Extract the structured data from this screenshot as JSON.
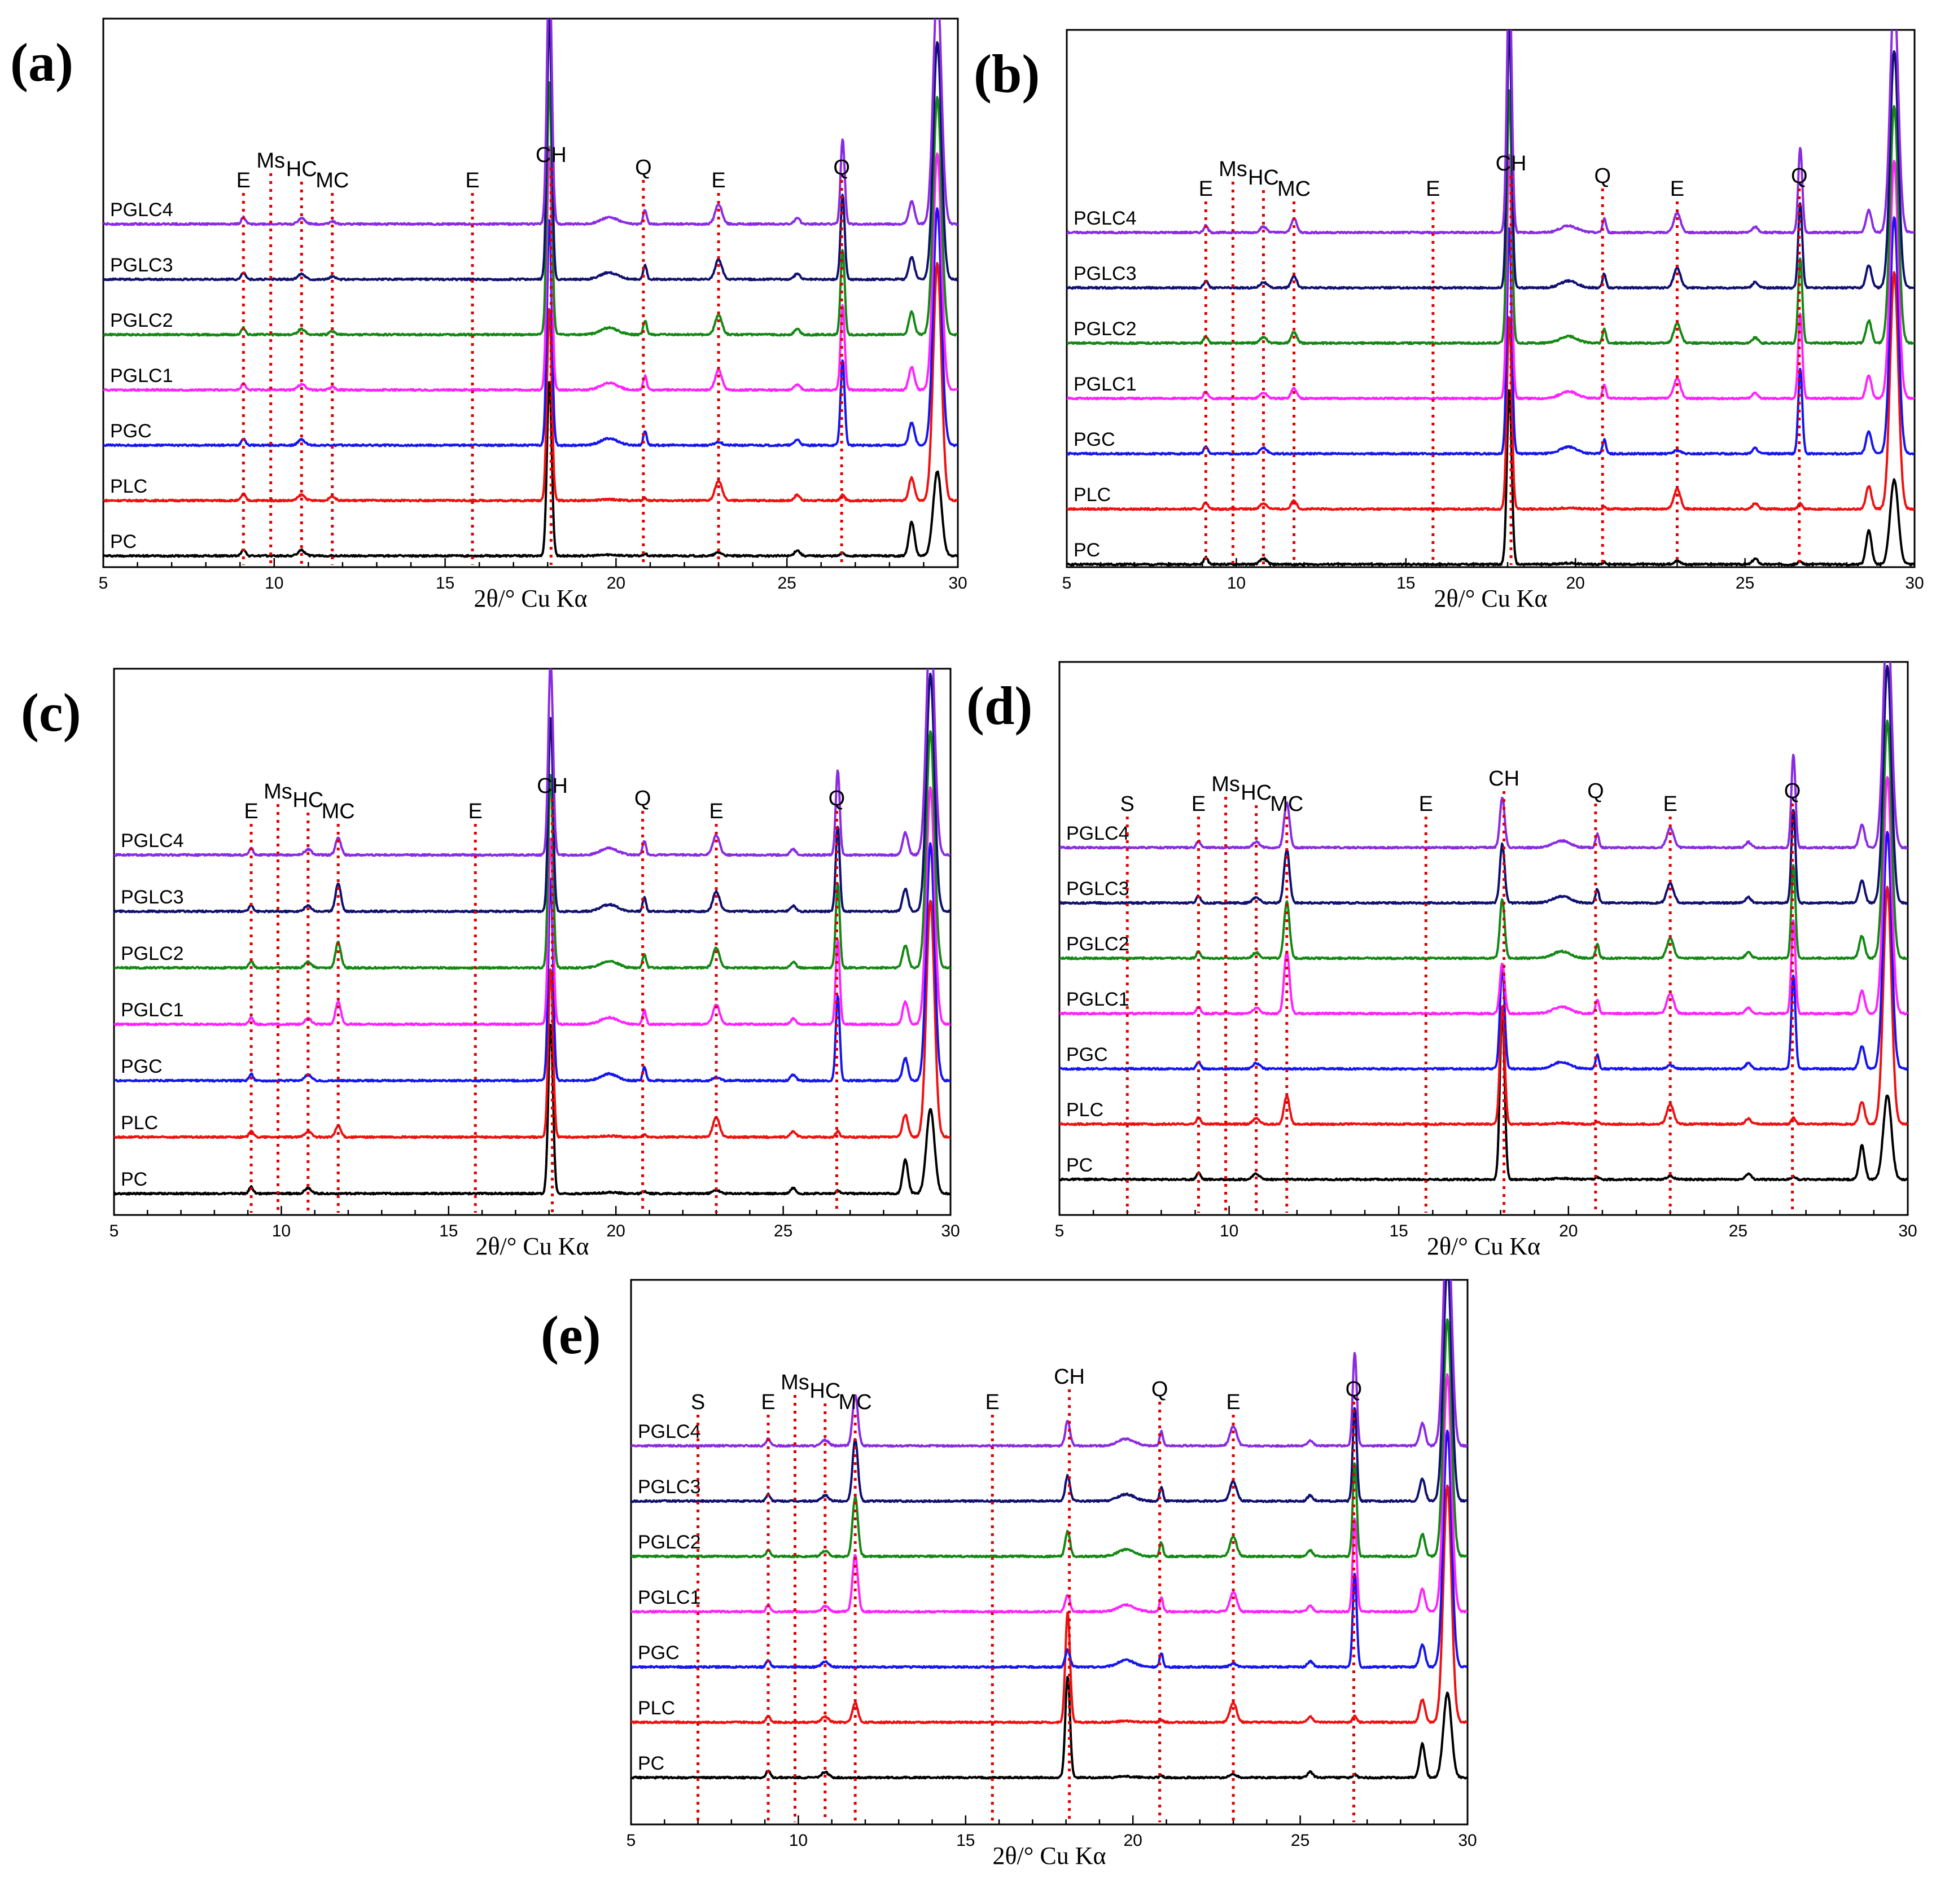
{
  "chart_data": [
    {
      "type": "line",
      "panel_label": "(a)",
      "xlabel": "2θ/° Cu Kα",
      "xlim": [
        5,
        30
      ],
      "xticks": [
        "5",
        "10",
        "15",
        "20",
        "25",
        "30"
      ],
      "series_names": [
        "PC",
        "PLC",
        "PGC",
        "PGLC1",
        "PGLC2",
        "PGLC3",
        "PGLC4"
      ],
      "annotations": [
        {
          "label": "E",
          "x": 9.1
        },
        {
          "label": "Ms",
          "x": 9.9
        },
        {
          "label": "HC",
          "x": 10.8
        },
        {
          "label": "MC",
          "x": 11.7
        },
        {
          "label": "E",
          "x": 15.8
        },
        {
          "label": "CH",
          "x": 18.1
        },
        {
          "label": "Q",
          "x": 20.8
        },
        {
          "label": "E",
          "x": 23.0
        },
        {
          "label": "Q",
          "x": 26.6
        }
      ]
    },
    {
      "type": "line",
      "panel_label": "(b)",
      "xlabel": "2θ/° Cu Kα",
      "xlim": [
        5,
        30
      ],
      "xticks": [
        "5",
        "10",
        "15",
        "20",
        "25",
        "30"
      ],
      "series_names": [
        "PC",
        "PLC",
        "PGC",
        "PGLC1",
        "PGLC2",
        "PGLC3",
        "PGLC4"
      ],
      "annotations": [
        {
          "label": "E",
          "x": 9.1
        },
        {
          "label": "Ms",
          "x": 9.9
        },
        {
          "label": "HC",
          "x": 10.8
        },
        {
          "label": "MC",
          "x": 11.7
        },
        {
          "label": "E",
          "x": 15.8
        },
        {
          "label": "CH",
          "x": 18.1
        },
        {
          "label": "Q",
          "x": 20.8
        },
        {
          "label": "E",
          "x": 23.0
        },
        {
          "label": "Q",
          "x": 26.6
        }
      ]
    },
    {
      "type": "line",
      "panel_label": "(c)",
      "xlabel": "2θ/° Cu Kα",
      "xlim": [
        5,
        30
      ],
      "xticks": [
        "5",
        "10",
        "15",
        "20",
        "25",
        "30"
      ],
      "series_names": [
        "PC",
        "PLC",
        "PGC",
        "PGLC1",
        "PGLC2",
        "PGLC3",
        "PGLC4"
      ],
      "annotations": [
        {
          "label": "E",
          "x": 9.1
        },
        {
          "label": "Ms",
          "x": 9.9
        },
        {
          "label": "HC",
          "x": 10.8
        },
        {
          "label": "MC",
          "x": 11.7
        },
        {
          "label": "E",
          "x": 15.8
        },
        {
          "label": "CH",
          "x": 18.1
        },
        {
          "label": "Q",
          "x": 20.8
        },
        {
          "label": "E",
          "x": 23.0
        },
        {
          "label": "Q",
          "x": 26.6
        }
      ]
    },
    {
      "type": "line",
      "panel_label": "(d)",
      "xlabel": "2θ/° Cu Kα",
      "xlim": [
        5,
        30
      ],
      "xticks": [
        "5",
        "10",
        "15",
        "20",
        "25",
        "30"
      ],
      "series_names": [
        "PC",
        "PLC",
        "PGC",
        "PGLC1",
        "PGLC2",
        "PGLC3",
        "PGLC4"
      ],
      "annotations": [
        {
          "label": "S",
          "x": 7.0
        },
        {
          "label": "E",
          "x": 9.1
        },
        {
          "label": "Ms",
          "x": 9.9
        },
        {
          "label": "HC",
          "x": 10.8
        },
        {
          "label": "MC",
          "x": 11.7
        },
        {
          "label": "E",
          "x": 15.8
        },
        {
          "label": "CH",
          "x": 18.1
        },
        {
          "label": "Q",
          "x": 20.8
        },
        {
          "label": "E",
          "x": 23.0
        },
        {
          "label": "Q",
          "x": 26.6
        }
      ]
    },
    {
      "type": "line",
      "panel_label": "(e)",
      "xlabel": "2θ/° Cu Kα",
      "xlim": [
        5,
        30
      ],
      "xticks": [
        "5",
        "10",
        "15",
        "20",
        "25",
        "30"
      ],
      "series_names": [
        "PC",
        "PLC",
        "PGC",
        "PGLC1",
        "PGLC2",
        "PGLC3",
        "PGLC4"
      ],
      "annotations": [
        {
          "label": "S",
          "x": 7.0
        },
        {
          "label": "E",
          "x": 9.1
        },
        {
          "label": "Ms",
          "x": 9.9
        },
        {
          "label": "HC",
          "x": 10.8
        },
        {
          "label": "MC",
          "x": 11.7
        },
        {
          "label": "E",
          "x": 15.8
        },
        {
          "label": "CH",
          "x": 18.1
        },
        {
          "label": "Q",
          "x": 20.8
        },
        {
          "label": "E",
          "x": 23.0
        },
        {
          "label": "Q",
          "x": 26.6
        }
      ]
    }
  ],
  "series_colors": {
    "PC": "#000000",
    "PLC": "#ee1111",
    "PGC": "#1515ee",
    "PGLC1": "#ff22ff",
    "PGLC2": "#138813",
    "PGLC3": "#101070",
    "PGLC4": "#8a2be2"
  },
  "marker_color": "#e00000"
}
